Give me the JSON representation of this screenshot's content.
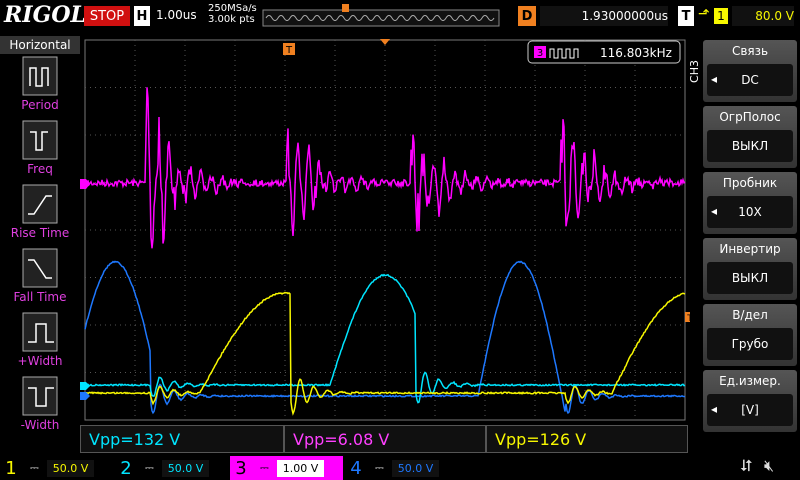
{
  "top_bar": {
    "brand": "RIGOL",
    "status": "STOP",
    "timebase_label": "H",
    "timebase": "1.00us",
    "sample_rate": "250MSa/s",
    "memory_depth": "3.00k pts",
    "delay_label": "D",
    "delay": "1.93000000us",
    "trigger_label": "T",
    "trigger_source": "1",
    "trigger_level": "80.0 V"
  },
  "left_menu": {
    "title": "Horizontal",
    "items": [
      "Period",
      "Freq",
      "Rise Time",
      "Fall Time",
      "+Width",
      "-Width"
    ]
  },
  "right_menu": {
    "title": "CH3",
    "items": [
      {
        "label": "Связь",
        "value": "DC"
      },
      {
        "label": "ОгрПолос",
        "value": "ВЫКЛ"
      },
      {
        "label": "Пробник",
        "value": "10X"
      },
      {
        "label": "Инвертир",
        "value": "ВЫКЛ"
      },
      {
        "label": "В/дел",
        "value": "Грубо"
      },
      {
        "label": "Ед.измер.",
        "value": "[V]"
      }
    ]
  },
  "counter": {
    "channel": "3",
    "value": "116.803kHz"
  },
  "markers": {
    "trigger_top": "T",
    "trigger_right": "T",
    "channels": [
      "3",
      "2",
      "4"
    ]
  },
  "measurements": [
    "Vpp=132 V",
    "Vpp=6.08 V",
    "Vpp=126 V"
  ],
  "channels": [
    {
      "number": "1",
      "scale": "50.0 V"
    },
    {
      "number": "2",
      "scale": "50.0 V"
    },
    {
      "number": "3",
      "scale": "1.00 V"
    },
    {
      "number": "4",
      "scale": "50.0 V"
    }
  ]
}
